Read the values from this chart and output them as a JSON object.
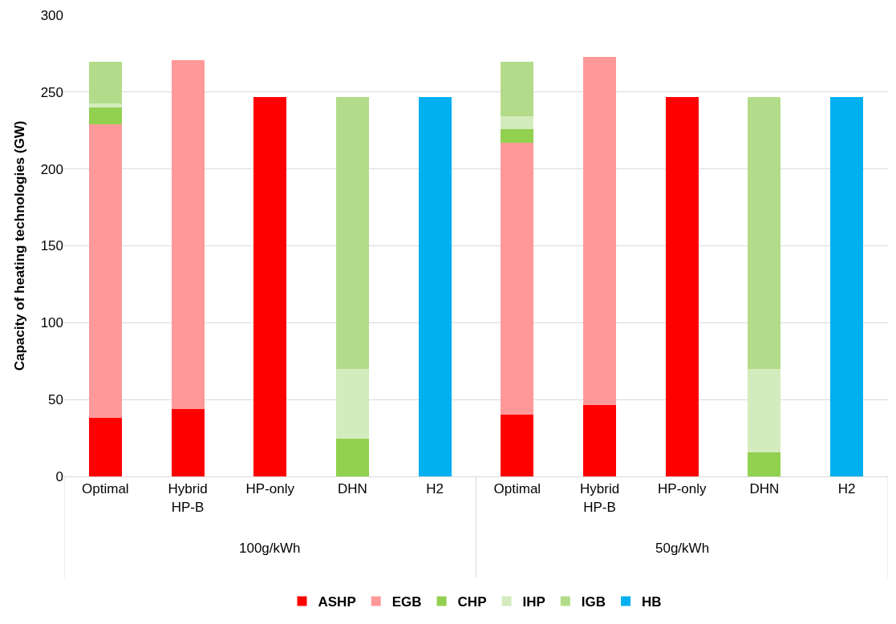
{
  "chart_data": {
    "type": "bar",
    "stacked": true,
    "ylabel": "Capacity of heating technologies (GW)",
    "categories": [
      "Optimal",
      "Hybrid HP-B",
      "HP-only",
      "DHN",
      "H2",
      "Optimal",
      "Hybrid HP-B",
      "HP-only",
      "DHN",
      "H2"
    ],
    "series": [
      {
        "name": "ASHP",
        "color": "#ff0000",
        "values": [
          38,
          44,
          247,
          null,
          null,
          40,
          46.5,
          247,
          null,
          null
        ]
      },
      {
        "name": "EGB",
        "color": "#ff9999",
        "values": [
          191,
          227,
          null,
          null,
          null,
          177,
          226.5,
          null,
          null,
          null
        ]
      },
      {
        "name": "CHP",
        "color": "#92d050",
        "values": [
          11,
          null,
          null,
          24.5,
          null,
          9,
          null,
          null,
          15.5,
          null
        ]
      },
      {
        "name": "IHP",
        "color": "#d4ebbd",
        "values": [
          2.5,
          null,
          null,
          45.5,
          null,
          8.5,
          null,
          null,
          54.5,
          null
        ]
      },
      {
        "name": "IGB",
        "color": "#b3dc8a",
        "values": [
          27,
          null,
          null,
          177,
          null,
          35.5,
          null,
          null,
          177,
          null
        ]
      },
      {
        "name": "HB",
        "color": "#00b0f0",
        "values": [
          null,
          null,
          null,
          null,
          247,
          null,
          null,
          null,
          null,
          247
        ]
      }
    ],
    "annotations": [
      "100g/kWh",
      "50g/kWh"
    ],
    "ylim": [
      0,
      300
    ],
    "yticks": [
      0,
      50,
      100,
      150,
      200,
      250,
      300
    ],
    "grid": "y",
    "legend": "bottom"
  }
}
